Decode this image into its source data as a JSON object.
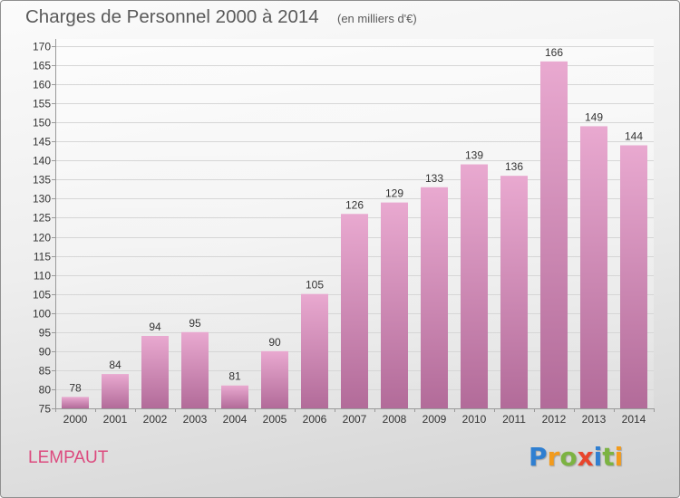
{
  "chart_data": {
    "type": "bar",
    "title": "Charges de Personnel 2000 à 2014",
    "subtitle": "(en milliers d'€)",
    "xlabel": "",
    "ylabel": "",
    "categories": [
      "2000",
      "2001",
      "2002",
      "2003",
      "2004",
      "2005",
      "2006",
      "2007",
      "2008",
      "2009",
      "2010",
      "2011",
      "2012",
      "2013",
      "2014"
    ],
    "values": [
      78,
      84,
      94,
      95,
      81,
      90,
      105,
      126,
      129,
      133,
      139,
      136,
      166,
      149,
      144
    ],
    "ylim": [
      75,
      170
    ],
    "yticks": [
      75,
      80,
      85,
      90,
      95,
      100,
      105,
      110,
      115,
      120,
      125,
      130,
      135,
      140,
      145,
      150,
      155,
      160,
      165,
      170
    ],
    "grid": true,
    "colors": {
      "bar_top": "#e9a9d0",
      "bar_bottom": "#b26b99",
      "grid": "#d6d6d6",
      "axis": "#9a9a9a"
    }
  },
  "location": {
    "name": "LEMPAUT",
    "color": "#dc4a7e"
  },
  "logo": {
    "text": "Proxiti",
    "letter_colors": [
      "#2f7fd1",
      "#f29b1d",
      "#7cb342",
      "#e8452c",
      "#2f7fd1",
      "#7cb342",
      "#f29b1d"
    ]
  }
}
